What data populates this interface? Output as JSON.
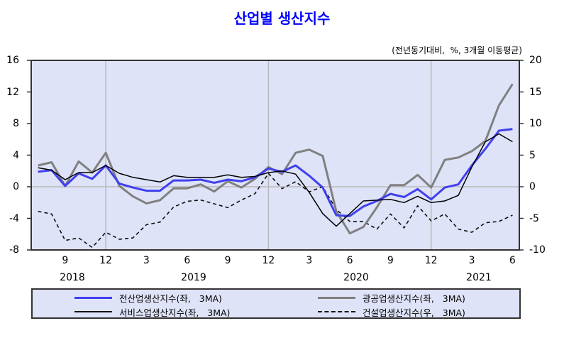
{
  "title": "산업별  생산지수",
  "subtitle": "(전년동기대비,  %, 3개월 이동평균)",
  "axes": {
    "left_ticks": [
      "16",
      "12",
      "8",
      "4",
      "0",
      "-4",
      "-8"
    ],
    "right_ticks": [
      "20",
      "15",
      "10",
      "5",
      "0",
      "-5",
      "-10"
    ],
    "month_ticks": [
      "9",
      "12",
      "3",
      "6",
      "9",
      "12",
      "3",
      "6",
      "9",
      "12",
      "3",
      "6"
    ],
    "year_labels": [
      "2018",
      "2019",
      "2020",
      "2021"
    ]
  },
  "legend": {
    "items": [
      {
        "label": "전산업생산지수(좌,   3MA)"
      },
      {
        "label": "광공업생산지수(좌,   3MA)"
      },
      {
        "label": "서비스업생산지수(좌,   3MA)"
      },
      {
        "label": "건설업생산지수(우,   3MA)"
      }
    ]
  },
  "chart_data": {
    "type": "line",
    "title": "산업별 생산지수",
    "subtitle": "(전년동기대비, %, 3개월 이동평균)",
    "xlabel": "",
    "ylabel_left": "%",
    "ylabel_right": "%",
    "ylim_left": [
      -8,
      16
    ],
    "ylim_right": [
      -10,
      20
    ],
    "left_ticks": [
      16,
      12,
      8,
      4,
      0,
      -4,
      -8
    ],
    "right_ticks": [
      20,
      15,
      10,
      5,
      0,
      -5,
      -10
    ],
    "grid": "vertical lines at each December, horizontal line at 0",
    "legend_position": "bottom",
    "categories": [
      "2018.07",
      "2018.08",
      "2018.09",
      "2018.10",
      "2018.11",
      "2018.12",
      "2019.01",
      "2019.02",
      "2019.03",
      "2019.04",
      "2019.05",
      "2019.06",
      "2019.07",
      "2019.08",
      "2019.09",
      "2019.10",
      "2019.11",
      "2019.12",
      "2020.01",
      "2020.02",
      "2020.03",
      "2020.04",
      "2020.05",
      "2020.06",
      "2020.07",
      "2020.08",
      "2020.09",
      "2020.10",
      "2020.11",
      "2020.12",
      "2021.01",
      "2021.02",
      "2021.03",
      "2021.04",
      "2021.05",
      "2021.06"
    ],
    "series": [
      {
        "id": "construction",
        "name": "건설업생산지수(우, 3MA)",
        "axis": "right",
        "color": "#111111",
        "width": 1.6,
        "dash": "5,4",
        "values": [
          -3.9,
          -4.3,
          -8.5,
          -8.1,
          -9.6,
          -7.2,
          -8.3,
          -8.1,
          -6.0,
          -5.6,
          -3.2,
          -2.3,
          -2.1,
          -2.7,
          -3.3,
          -2.1,
          -1.1,
          2.1,
          -0.3,
          0.8,
          -0.8,
          0.0,
          -3.6,
          -5.5,
          -5.5,
          -6.7,
          -4.3,
          -6.5,
          -3.0,
          -5.4,
          -4.3,
          -6.7,
          -7.2,
          -5.7,
          -5.5,
          -4.5
        ]
      },
      {
        "id": "mining-manufacturing",
        "name": "광공업생산지수(좌, 3MA)",
        "axis": "left",
        "color": "#808080",
        "width": 3,
        "dash": "",
        "values": [
          2.7,
          3.1,
          0.1,
          3.2,
          1.8,
          4.3,
          0.1,
          -1.2,
          -2.1,
          -1.7,
          -0.2,
          -0.2,
          0.3,
          -0.6,
          0.7,
          -0.1,
          1.0,
          2.5,
          1.6,
          4.3,
          4.7,
          3.9,
          -3.1,
          -5.9,
          -5.1,
          -2.6,
          0.2,
          0.2,
          1.5,
          -0.1,
          3.4,
          3.7,
          4.5,
          5.8,
          10.3,
          13.0
        ]
      },
      {
        "id": "all-industry",
        "name": "전산업생산지수(좌, 3MA)",
        "axis": "left",
        "color": "#4040ee",
        "width": 3,
        "dash": "",
        "values": [
          1.9,
          2.1,
          0.1,
          1.7,
          1.0,
          2.7,
          0.4,
          -0.1,
          -0.5,
          -0.5,
          0.8,
          0.8,
          0.9,
          0.5,
          0.9,
          0.7,
          1.2,
          2.3,
          1.9,
          2.7,
          1.4,
          -0.1,
          -3.6,
          -3.7,
          -2.5,
          -1.8,
          -0.9,
          -1.3,
          -0.3,
          -1.6,
          -0.1,
          0.3,
          2.7,
          4.8,
          7.1,
          7.3
        ]
      },
      {
        "id": "services",
        "name": "서비스업생산지수(좌, 3MA)",
        "axis": "left",
        "color": "#000000",
        "width": 1.5,
        "dash": "",
        "values": [
          2.4,
          2.1,
          0.9,
          1.8,
          1.8,
          2.7,
          1.7,
          1.2,
          0.9,
          0.6,
          1.4,
          1.2,
          1.2,
          1.2,
          1.5,
          1.2,
          1.3,
          1.8,
          2.0,
          1.6,
          -0.7,
          -3.4,
          -5.0,
          -3.4,
          -1.8,
          -1.7,
          -1.6,
          -2.0,
          -1.2,
          -2.0,
          -1.8,
          -1.1,
          2.5,
          5.7,
          6.7,
          5.7
        ]
      }
    ]
  }
}
